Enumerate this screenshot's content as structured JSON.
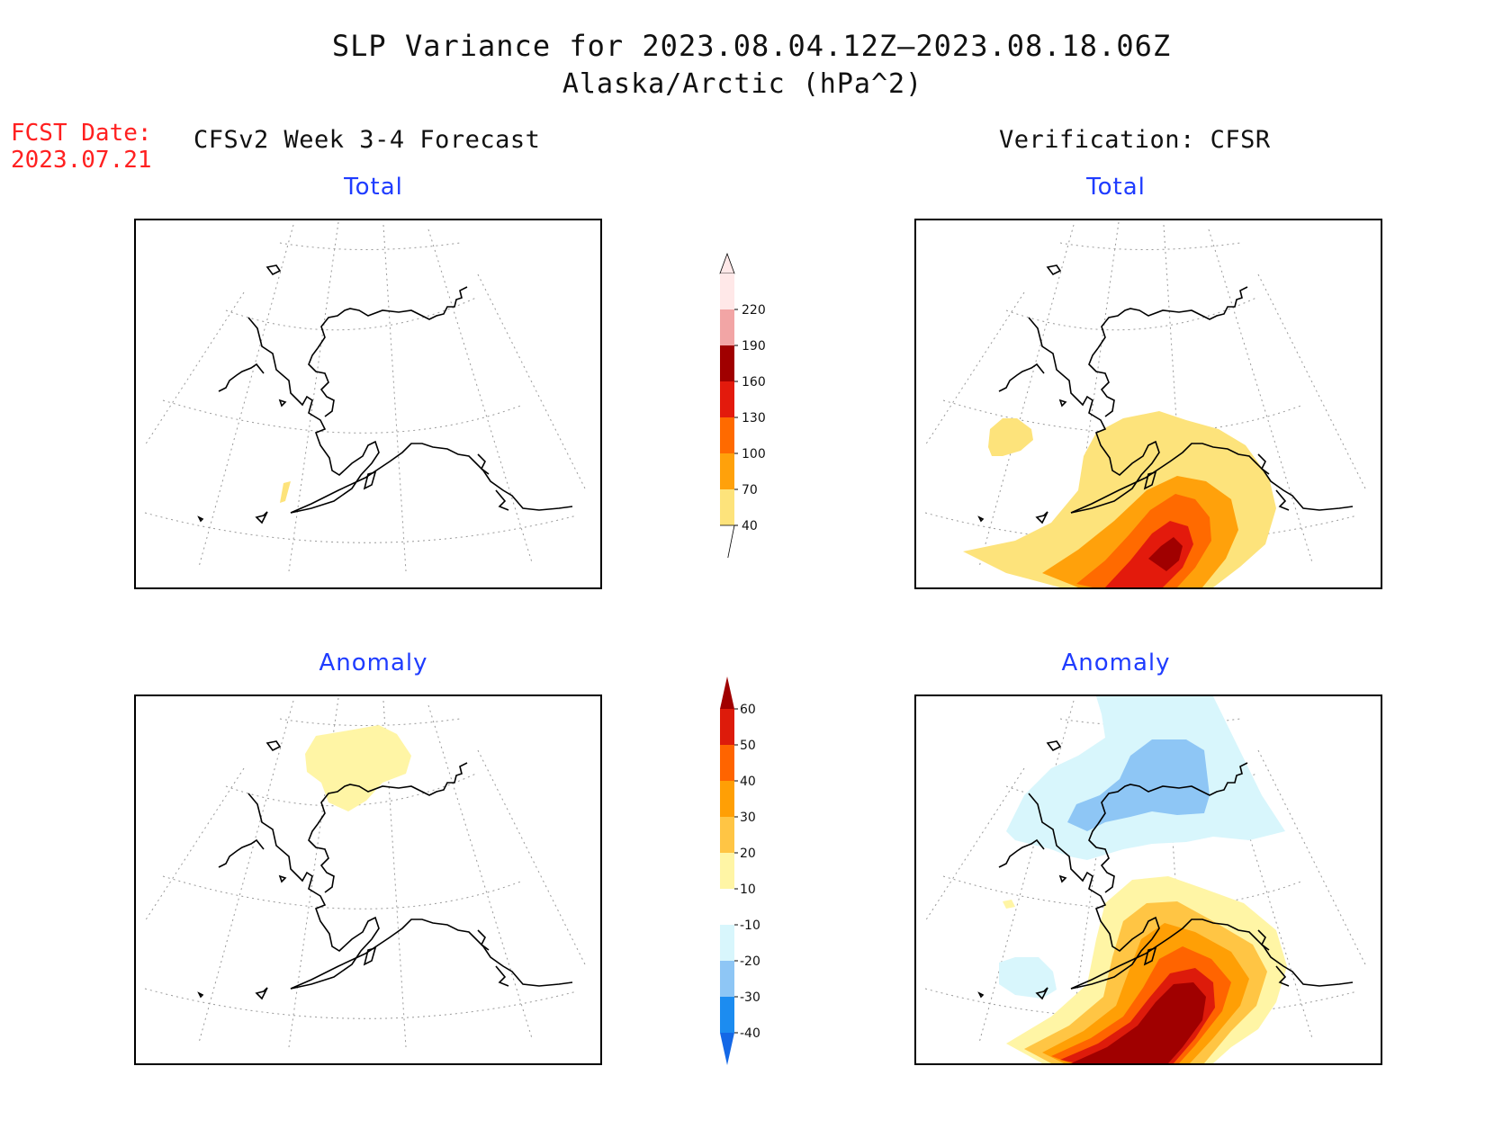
{
  "title": {
    "line1": "SLP Variance for 2023.08.04.12Z—2023.08.18.06Z",
    "line2": "Alaska/Arctic (hPa^2)"
  },
  "forecast_date": {
    "label": "FCST Date:",
    "value": "2023.07.21"
  },
  "columns": {
    "left": "CFSv2 Week 3-4 Forecast",
    "right": "Verification: CFSR"
  },
  "panels": {
    "forecast_total": "Total",
    "verification_total": "Total",
    "forecast_anomaly": "Anomaly",
    "verification_anomaly": "Anomaly"
  },
  "colorbars": {
    "total": {
      "ticks": [
        "40",
        "70",
        "100",
        "130",
        "160",
        "190",
        "220"
      ],
      "colors": [
        "#fde37b",
        "#ffa10b",
        "#ff6a00",
        "#e31a0c",
        "#a00000",
        "#f2a5a5",
        "#ffe8e8"
      ]
    },
    "anomaly": {
      "ticks": [
        "-40",
        "-30",
        "-20",
        "-10",
        "10",
        "20",
        "30",
        "40",
        "50",
        "60"
      ],
      "colors": [
        "#1468e6",
        "#1c8cf0",
        "#8ec6f5",
        "#d8f6fc",
        "#ffffff",
        "#fff5a5",
        "#ffc544",
        "#ff9f05",
        "#ff6400",
        "#dd1b0b",
        "#a00000"
      ]
    }
  }
}
